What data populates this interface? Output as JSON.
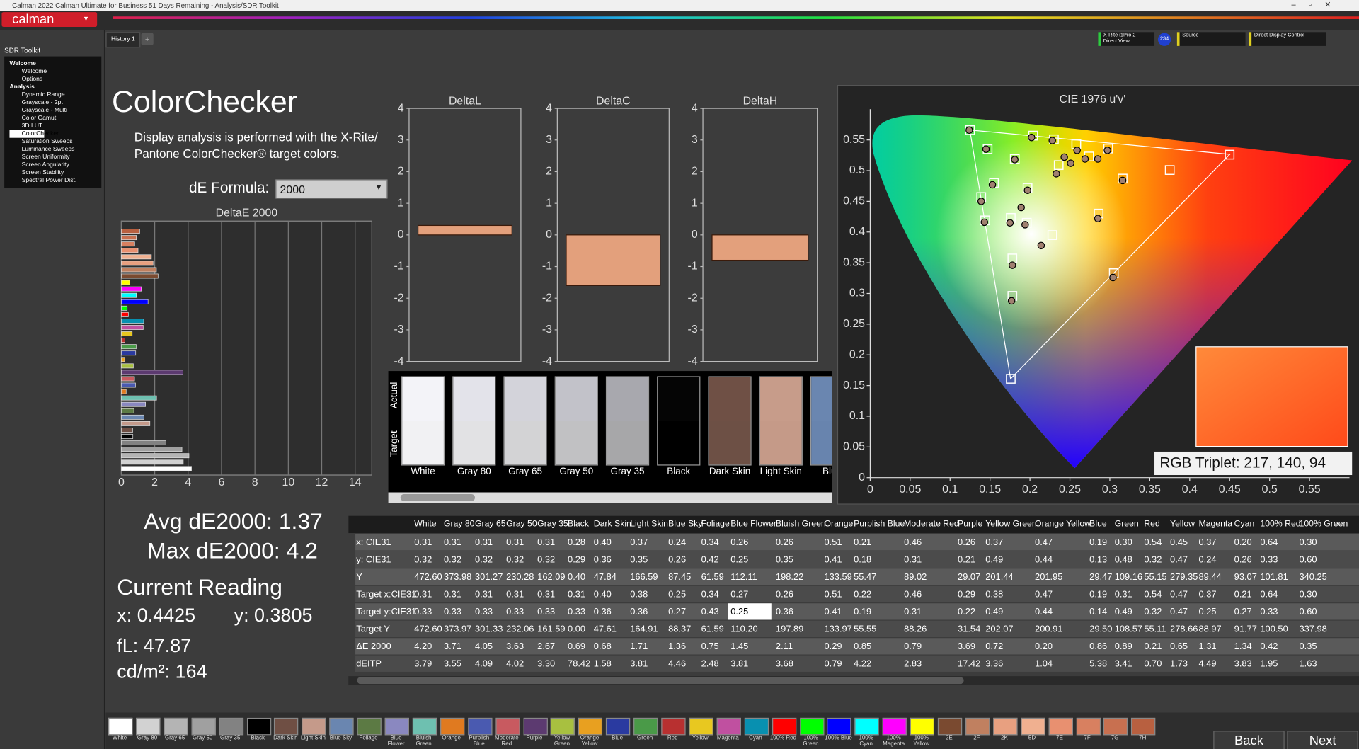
{
  "window_title": "Calman 2022 Calman Ultimate for Business 51 Days Remaining - Analysis/SDR Toolkit",
  "toolbar": {
    "logo": "calman",
    "history_tab": "History 1",
    "meter": [
      "X-Rite i1Pro 2",
      "Direct View"
    ],
    "meter_badge": "234",
    "source": "Source",
    "display_control": "Direct Display Control"
  },
  "sidebar": {
    "title": "SDR Toolkit",
    "tree": [
      {
        "label": "Welcome",
        "items": [
          "Welcome",
          "Options"
        ]
      },
      {
        "label": "Analysis",
        "items": [
          "Dynamic Range",
          "Grayscale - 2pt",
          "Grayscale - Multi",
          "Color Gamut",
          "3D LUT",
          "ColorChecker",
          "Saturation Sweeps",
          "Luminance Sweeps",
          "Screen Uniformity",
          "Screen Angularity",
          "Screen Stability",
          "Spectral Power Dist."
        ]
      }
    ]
  },
  "page": {
    "heading": "ColorChecker",
    "description": [
      "Display analysis is performed with the X-Rite/",
      "Pantone ColorChecker® target colors."
    ],
    "formula_label": "dE Formula:",
    "formula_value": "2000"
  },
  "stats": {
    "avg": "Avg dE2000: 1.37",
    "max": "Max dE2000: 4.2",
    "reading_title": "Current Reading",
    "x": "x: 0.4425",
    "y": "y: 0.3805",
    "fl": "fL: 47.87",
    "cdm2": "cd/m²: 164"
  },
  "swatches": {
    "actual_label": "Actual",
    "target_label": "Target",
    "items": [
      {
        "label": "White",
        "actual": "#f3f3f8",
        "target": "#f1f1f3"
      },
      {
        "label": "Gray 80",
        "actual": "#e3e3ea",
        "target": "#e2e2e4"
      },
      {
        "label": "Gray 65",
        "actual": "#d3d3da",
        "target": "#d3d3d5"
      },
      {
        "label": "Gray 50",
        "actual": "#c2c2c9",
        "target": "#c1c1c3"
      },
      {
        "label": "Gray 35",
        "actual": "#a8a8ae",
        "target": "#a7a7a9"
      },
      {
        "label": "Black",
        "actual": "#050505",
        "target": "#000000"
      },
      {
        "label": "Dark Skin",
        "actual": "#6f5045",
        "target": "#6d5045"
      },
      {
        "label": "Light Skin",
        "actual": "#c79c8a",
        "target": "#c59a88"
      },
      {
        "label": "Blue",
        "actual": "#6a86b0",
        "target": "#6884ae"
      }
    ]
  },
  "table": {
    "columns": [
      "White",
      "Gray 80",
      "Gray 65",
      "Gray 50",
      "Gray 35",
      "Black",
      "Dark Skin",
      "Light Skin",
      "Blue Sky",
      "Foliage",
      "Blue Flower",
      "Bluish Green",
      "Orange",
      "Purplish Blue",
      "Moderate Red",
      "Purple",
      "Yellow Green",
      "Orange Yellow",
      "Blue",
      "Green",
      "Red",
      "Yellow",
      "Magenta",
      "Cyan",
      "100% Red",
      "100% Green"
    ],
    "rows": [
      {
        "label": "x: CIE31",
        "cells": [
          "0.31",
          "0.31",
          "0.31",
          "0.31",
          "0.31",
          "0.28",
          "0.40",
          "0.37",
          "0.24",
          "0.34",
          "0.26",
          "0.26",
          "0.51",
          "0.21",
          "0.46",
          "0.26",
          "0.37",
          "0.47",
          "0.19",
          "0.30",
          "0.54",
          "0.45",
          "0.37",
          "0.20",
          "0.64",
          "0.30"
        ]
      },
      {
        "label": "y: CIE31",
        "cells": [
          "0.32",
          "0.32",
          "0.32",
          "0.32",
          "0.32",
          "0.29",
          "0.36",
          "0.35",
          "0.26",
          "0.42",
          "0.25",
          "0.35",
          "0.41",
          "0.18",
          "0.31",
          "0.21",
          "0.49",
          "0.44",
          "0.13",
          "0.48",
          "0.32",
          "0.47",
          "0.24",
          "0.26",
          "0.33",
          "0.60"
        ]
      },
      {
        "label": "Y",
        "cells": [
          "472.60",
          "373.98",
          "301.27",
          "230.28",
          "162.09",
          "0.40",
          "47.84",
          "166.59",
          "87.45",
          "61.59",
          "112.11",
          "198.22",
          "133.59",
          "55.47",
          "89.02",
          "29.07",
          "201.44",
          "201.95",
          "29.47",
          "109.16",
          "55.15",
          "279.35",
          "89.44",
          "93.07",
          "101.81",
          "340.25"
        ]
      },
      {
        "label": "Target x:CIE31",
        "cells": [
          "0.31",
          "0.31",
          "0.31",
          "0.31",
          "0.31",
          "0.31",
          "0.40",
          "0.38",
          "0.25",
          "0.34",
          "0.27",
          "0.26",
          "0.51",
          "0.22",
          "0.46",
          "0.29",
          "0.38",
          "0.47",
          "0.19",
          "0.31",
          "0.54",
          "0.47",
          "0.37",
          "0.21",
          "0.64",
          "0.30"
        ]
      },
      {
        "label": "Target y:CIE31",
        "cells": [
          "0.33",
          "0.33",
          "0.33",
          "0.33",
          "0.33",
          "0.33",
          "0.36",
          "0.36",
          "0.27",
          "0.43",
          "0.25",
          "0.36",
          "0.41",
          "0.19",
          "0.31",
          "0.22",
          "0.49",
          "0.44",
          "0.14",
          "0.49",
          "0.32",
          "0.47",
          "0.25",
          "0.27",
          "0.33",
          "0.60"
        ]
      },
      {
        "label": "Target Y",
        "cells": [
          "472.60",
          "373.97",
          "301.33",
          "232.06",
          "161.59",
          "0.00",
          "47.61",
          "164.91",
          "88.37",
          "61.59",
          "110.20",
          "197.89",
          "133.97",
          "55.55",
          "88.26",
          "31.54",
          "202.07",
          "200.91",
          "29.50",
          "108.57",
          "55.11",
          "278.66",
          "88.97",
          "91.77",
          "100.50",
          "337.98"
        ]
      },
      {
        "label": "ΔE 2000",
        "cells": [
          "4.20",
          "3.71",
          "4.05",
          "3.63",
          "2.67",
          "0.69",
          "0.68",
          "1.71",
          "1.36",
          "0.75",
          "1.45",
          "2.11",
          "0.29",
          "0.85",
          "0.79",
          "3.69",
          "0.72",
          "0.20",
          "0.86",
          "0.89",
          "0.21",
          "0.65",
          "1.31",
          "1.34",
          "0.42",
          "0.35"
        ]
      },
      {
        "label": "dEITP",
        "cells": [
          "3.79",
          "3.55",
          "4.09",
          "4.02",
          "3.30",
          "78.42",
          "1.58",
          "3.81",
          "4.46",
          "2.48",
          "3.81",
          "3.68",
          "0.79",
          "4.22",
          "2.83",
          "17.42",
          "3.36",
          "1.04",
          "5.38",
          "3.41",
          "0.70",
          "1.73",
          "4.49",
          "3.83",
          "1.95",
          "1.63"
        ]
      }
    ],
    "selected_cell": {
      "row": 4,
      "column": 10
    }
  },
  "rgb_triplet": "RGB Triplet: 217, 140, 94",
  "patch_strip": [
    {
      "label": "White",
      "color": "#ffffff"
    },
    {
      "label": "Gray 80",
      "color": "#d2d2d2"
    },
    {
      "label": "Gray 65",
      "color": "#b4b4b4"
    },
    {
      "label": "Gray 50",
      "color": "#a0a0a0"
    },
    {
      "label": "Gray 35",
      "color": "#828282"
    },
    {
      "label": "Black",
      "color": "#000000"
    },
    {
      "label": "Dark Skin",
      "color": "#6f4f44"
    },
    {
      "label": "Light Skin",
      "color": "#c59a8a"
    },
    {
      "label": "Blue Sky",
      "color": "#6a86b0"
    },
    {
      "label": "Foliage",
      "color": "#5c7a44"
    },
    {
      "label": "Blue Flower",
      "color": "#8a88c0"
    },
    {
      "label": "Bluish Green",
      "color": "#6ec0b0"
    },
    {
      "label": "Orange",
      "color": "#e07a20"
    },
    {
      "label": "Purplish Blue",
      "color": "#4a5ab0"
    },
    {
      "label": "Moderate Red",
      "color": "#c85a60"
    },
    {
      "label": "Purple",
      "color": "#5c3a70"
    },
    {
      "label": "Yellow Green",
      "color": "#a8c040"
    },
    {
      "label": "Orange Yellow",
      "color": "#e8a020"
    },
    {
      "label": "Blue",
      "color": "#2a3aa0"
    },
    {
      "label": "Green",
      "color": "#4a9a48"
    },
    {
      "label": "Red",
      "color": "#b83030"
    },
    {
      "label": "Yellow",
      "color": "#e8c820"
    },
    {
      "label": "Magenta",
      "color": "#c050a0"
    },
    {
      "label": "Cyan",
      "color": "#0890b0"
    },
    {
      "label": "100% Red",
      "color": "#ff0000"
    },
    {
      "label": "100% Green",
      "color": "#00ff00"
    },
    {
      "label": "100% Blue",
      "color": "#0000ff"
    },
    {
      "label": "100% Cyan",
      "color": "#00ffff"
    },
    {
      "label": "100% Magenta",
      "color": "#ff00ff"
    },
    {
      "label": "100% Yellow",
      "color": "#ffff00"
    },
    {
      "label": "2E",
      "color": "#7a4a30"
    },
    {
      "label": "2F",
      "color": "#c08060"
    },
    {
      "label": "2K",
      "color": "#e8a080"
    },
    {
      "label": "5D",
      "color": "#f0b090"
    },
    {
      "label": "7E",
      "color": "#e89070"
    },
    {
      "label": "7F",
      "color": "#d88060"
    },
    {
      "label": "7G",
      "color": "#c87050"
    },
    {
      "label": "7H",
      "color": "#b86040"
    }
  ],
  "nav": {
    "back": "Back",
    "next": "Next"
  },
  "chart_data": [
    {
      "type": "hbar",
      "title": "DeltaE 2000",
      "values": [
        4.2,
        3.71,
        4.05,
        3.63,
        2.67,
        0.69,
        0.68,
        1.71,
        1.36,
        0.75,
        1.45,
        2.11,
        0.29,
        0.85,
        0.79,
        3.69,
        0.72,
        0.2,
        0.86,
        0.89,
        0.21,
        0.65,
        1.31,
        1.34,
        0.42,
        0.35,
        1.6,
        0.9,
        1.2,
        0.5,
        2.2,
        2.1,
        1.9,
        1.8,
        1.0,
        0.8,
        0.9,
        1.1
      ],
      "xlim": [
        0,
        15
      ],
      "xticks": [
        0,
        2,
        4,
        6,
        8,
        10,
        12,
        14
      ],
      "grid": true
    },
    {
      "type": "bar",
      "title": "DeltaL",
      "values": [
        0.3
      ],
      "color": "#e3a07c",
      "ylim": [
        -4,
        4
      ],
      "yticks": [
        4,
        3,
        2,
        1,
        0,
        -1,
        -2,
        -3,
        -4
      ]
    },
    {
      "type": "bar",
      "title": "DeltaC",
      "values": [
        -1.6
      ],
      "color": "#e3a07c",
      "ylim": [
        -4,
        4
      ],
      "yticks": [
        4,
        3,
        2,
        1,
        0,
        -1,
        -2,
        -3,
        -4
      ]
    },
    {
      "type": "bar",
      "title": "DeltaH",
      "values": [
        -0.8
      ],
      "color": "#e3a07c",
      "ylim": [
        -4,
        4
      ],
      "yticks": [
        4,
        3,
        2,
        1,
        0,
        -1,
        -2,
        -3,
        -4
      ]
    },
    {
      "type": "scatter",
      "title": "CIE 1976 u'v'",
      "xlim": [
        0,
        0.6
      ],
      "ylim": [
        0,
        0.6
      ],
      "xticks": [
        0,
        0.05,
        0.1,
        0.15,
        0.2,
        0.25,
        0.3,
        0.35,
        0.4,
        0.45,
        0.5,
        0.55
      ],
      "yticks": [
        0,
        0.05,
        0.1,
        0.15,
        0.2,
        0.25,
        0.3,
        0.35,
        0.4,
        0.45,
        0.5,
        0.55
      ],
      "series": [
        {
          "marker": "square",
          "color": "#ffffff",
          "x": [
            0.125,
            0.147,
            0.181,
            0.204,
            0.23,
            0.258,
            0.298,
            0.197,
            0.155,
            0.139,
            0.144,
            0.176,
            0.196,
            0.228,
            0.178,
            0.178,
            0.176,
            0.286,
            0.305,
            0.316,
            0.375,
            0.45,
            0.236,
            0.274
          ],
          "y": [
            0.566,
            0.535,
            0.519,
            0.557,
            0.551,
            0.543,
            0.536,
            0.472,
            0.48,
            0.457,
            0.419,
            0.423,
            0.415,
            0.395,
            0.357,
            0.296,
            0.161,
            0.43,
            0.333,
            0.487,
            0.501,
            0.526,
            0.509,
            0.523
          ]
        },
        {
          "marker": "circle",
          "color": "#a08070",
          "x": [
            0.124,
            0.145,
            0.181,
            0.202,
            0.228,
            0.259,
            0.297,
            0.197,
            0.153,
            0.139,
            0.143,
            0.175,
            0.194,
            0.214,
            0.178,
            0.177,
            0.189,
            0.285,
            0.304,
            0.316,
            0.233,
            0.251,
            0.269,
            0.285,
            0.243
          ],
          "y": [
            0.566,
            0.535,
            0.518,
            0.554,
            0.549,
            0.533,
            0.533,
            0.468,
            0.477,
            0.45,
            0.416,
            0.415,
            0.412,
            0.378,
            0.346,
            0.288,
            0.44,
            0.422,
            0.326,
            0.484,
            0.495,
            0.512,
            0.519,
            0.519,
            0.522
          ]
        }
      ]
    }
  ]
}
